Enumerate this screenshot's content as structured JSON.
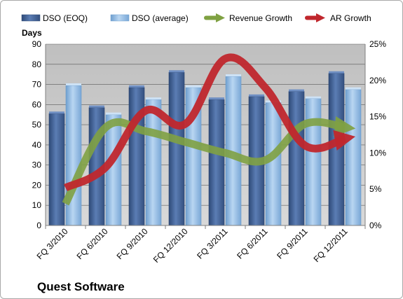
{
  "chart_data": {
    "type": "bar",
    "company": "Quest Software",
    "y_left_label": "Days",
    "categories": [
      "FQ 3/2010",
      "FQ 6/2010",
      "FQ 9/2010",
      "FQ 12/2010",
      "FQ 3/2011",
      "FQ 6/2011",
      "FQ 9/2011",
      "FQ 12/2011"
    ],
    "y_left_ticks": [
      "0",
      "10",
      "20",
      "30",
      "40",
      "50",
      "60",
      "70",
      "80",
      "90"
    ],
    "y_right_ticks": [
      "0%",
      "5%",
      "10%",
      "15%",
      "20%",
      "25%"
    ],
    "ylim_left": [
      0,
      90
    ],
    "ylim_right": [
      0,
      0.25
    ],
    "grid": true,
    "legend_position": "top",
    "series": [
      {
        "name": "DSO (EOQ)",
        "kind": "bar",
        "axis": "left",
        "color": "#4f6fa5",
        "values": [
          55.5,
          58.5,
          68.5,
          76,
          62.5,
          64,
          66.5,
          75.5
        ]
      },
      {
        "name": "DSO (average)",
        "kind": "bar",
        "axis": "left",
        "color": "#9ec3e6",
        "values": [
          69.5,
          55,
          62.5,
          68.5,
          74,
          61,
          63,
          67.5
        ]
      },
      {
        "name": "Revenue Growth",
        "kind": "arrow-line",
        "axis": "right",
        "color": "#7fa142",
        "values": [
          0.03,
          0.135,
          0.13,
          0.115,
          0.1,
          0.09,
          0.14,
          0.135
        ]
      },
      {
        "name": "AR Growth",
        "kind": "arrow-line",
        "axis": "right",
        "color": "#c0272d",
        "values": [
          0.052,
          0.08,
          0.158,
          0.14,
          0.23,
          0.19,
          0.11,
          0.12
        ]
      }
    ]
  }
}
